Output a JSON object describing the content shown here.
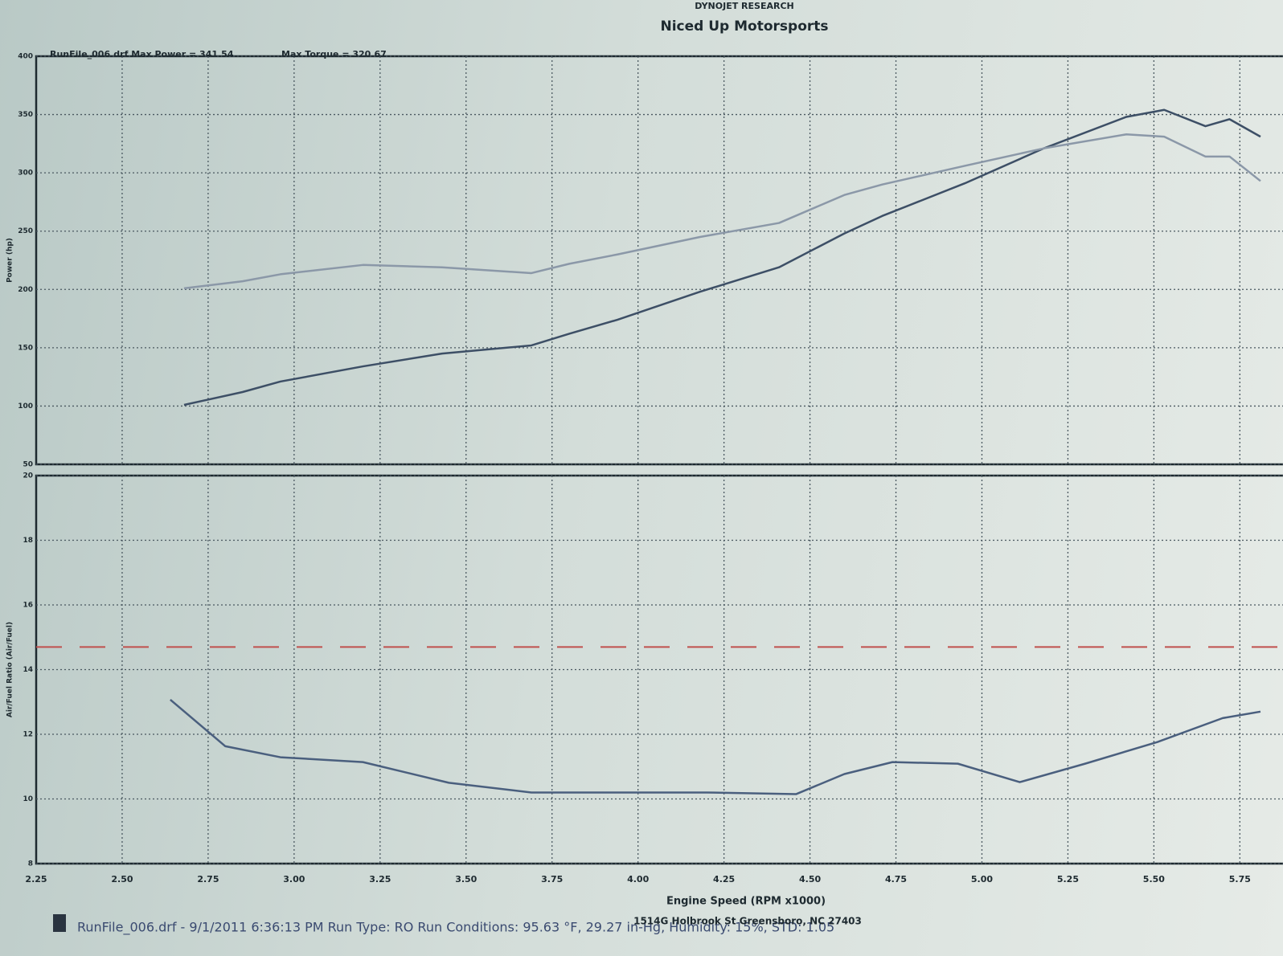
{
  "header": {
    "company": "DYNOJET RESEARCH",
    "shop": "Niced Up Motorsports"
  },
  "footer": {
    "run_info": "RunFile_006.drf - 9/1/2011 6:36:13 PM  Run Type: RO  Run Conditions: 95.63 °F, 29.27 in-Hg, Humidity: 15%, STD: 1.05",
    "address": "1514G Holbrook St Greensboro, NC 27403"
  },
  "chart_data": [
    {
      "type": "line",
      "ylabel": "Power (hp)",
      "annotations": [
        "RunFile_006.drf Max Power = 341.54",
        "Max Torque = 320.67"
      ],
      "x": [
        2.68,
        2.85,
        2.96,
        3.2,
        3.43,
        3.69,
        3.8,
        3.94,
        4.18,
        4.41,
        4.6,
        4.71,
        4.95,
        5.18,
        5.42,
        5.53,
        5.65,
        5.72,
        5.81
      ],
      "series": [
        {
          "color": "#3d4f66",
          "values": [
            101,
            112,
            121,
            134,
            145,
            152,
            162,
            174,
            198,
            219,
            248,
            263,
            291,
            321,
            348,
            354,
            340,
            346,
            331
          ]
        },
        {
          "color": "#8b98a8",
          "values": [
            201,
            207,
            213,
            221,
            219,
            214,
            222,
            230,
            245,
            257,
            281,
            290,
            306,
            321,
            333,
            331,
            314,
            314,
            293
          ]
        }
      ],
      "xlim": [
        2.25,
        5.81
      ],
      "ylim": [
        50,
        400
      ],
      "yticks": [
        50,
        100,
        150,
        200,
        250,
        300,
        350,
        400
      ],
      "grid": true
    },
    {
      "type": "line",
      "ylabel": "Air/Fuel Ratio (Air/Fuel)",
      "xlabel": "Engine Speed (RPM x1000)",
      "x": [
        2.64,
        2.8,
        2.96,
        3.2,
        3.45,
        3.69,
        4.2,
        4.46,
        4.6,
        4.74,
        4.93,
        5.11,
        5.3,
        5.51,
        5.7,
        5.81
      ],
      "series": [
        {
          "color": "#4a5f7e",
          "values": [
            13.07,
            11.63,
            11.29,
            11.14,
            10.5,
            10.2,
            10.2,
            10.15,
            10.77,
            11.14,
            11.09,
            10.52,
            11.09,
            11.76,
            12.5,
            12.7
          ]
        }
      ],
      "ref_line": {
        "value": 14.7,
        "color": "#c0504d"
      },
      "xlim": [
        2.25,
        5.81
      ],
      "ylim": [
        8,
        20
      ],
      "xticks": [
        {
          "value": 2.25,
          "label": "2.25"
        },
        {
          "value": 2.5,
          "label": "2.50"
        },
        2.75,
        {
          "value": 3,
          "label": "3.00"
        },
        3.25,
        {
          "value": 3.5,
          "label": "3.50"
        },
        3.75,
        {
          "value": 4,
          "label": "4.00"
        },
        4.25,
        {
          "value": 4.5,
          "label": "4.50"
        },
        4.75,
        {
          "value": 5,
          "label": "5.00"
        },
        5.25,
        {
          "value": 5.5,
          "label": "5.50"
        },
        5.75
      ],
      "yticks": [
        8,
        10,
        12,
        14,
        16,
        18,
        20
      ],
      "grid": true
    }
  ]
}
